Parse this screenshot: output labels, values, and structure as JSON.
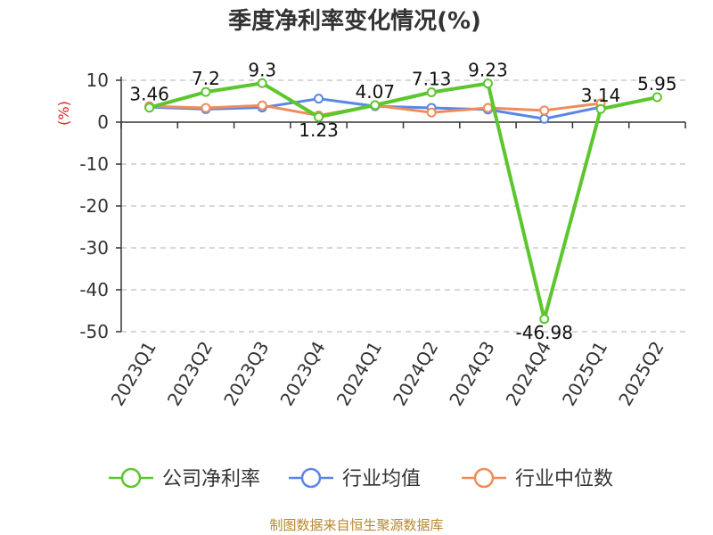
{
  "chart_data": {
    "type": "line",
    "title": "季度净利率变化情况(%)",
    "ylabel": "(%)",
    "xlabel": "",
    "categories": [
      "2023Q1",
      "2023Q2",
      "2023Q3",
      "2023Q4",
      "2024Q1",
      "2024Q2",
      "2024Q3",
      "2024Q4",
      "2025Q1",
      "2025Q2"
    ],
    "ylim": [
      -50,
      10
    ],
    "yticks": [
      10,
      0,
      -10,
      -20,
      -30,
      -40,
      -50
    ],
    "grid": true,
    "legend_position": "bottom",
    "series": [
      {
        "name": "公司净利率",
        "color": "#5cc62e",
        "values": [
          3.46,
          7.2,
          9.3,
          1.23,
          4.07,
          7.13,
          9.23,
          -46.98,
          3.14,
          5.95
        ],
        "labels": [
          "3.46",
          "7.2",
          "9.3",
          "1.23",
          "4.07",
          "7.13",
          "9.23",
          "-46.98",
          "3.14",
          "5.95"
        ]
      },
      {
        "name": "行业均值",
        "color": "#5a86e6",
        "values": [
          3.6,
          3.1,
          3.5,
          5.6,
          3.8,
          3.4,
          3.0,
          0.8,
          3.6,
          null
        ]
      },
      {
        "name": "行业中位数",
        "color": "#f08c5a",
        "values": [
          3.8,
          3.4,
          4.0,
          1.6,
          4.0,
          2.3,
          3.4,
          2.8,
          4.5,
          null
        ]
      }
    ]
  },
  "source_text": "制图数据来自恒生聚源数据库"
}
